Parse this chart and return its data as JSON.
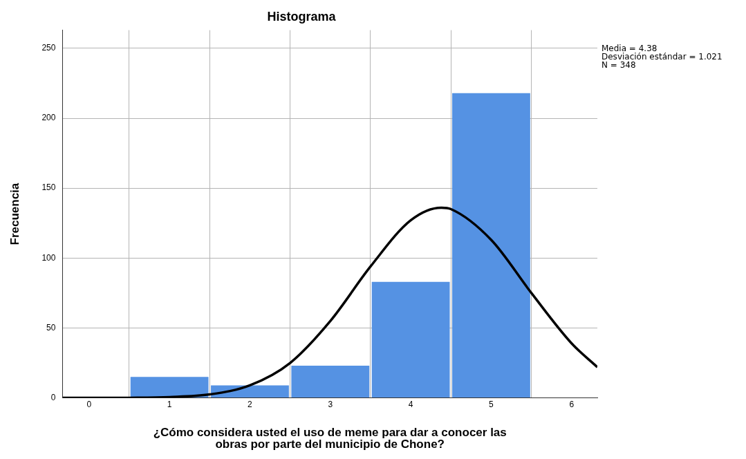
{
  "chart_data": {
    "type": "histogram",
    "title": "Histograma",
    "xlabel": "¿Cómo considera usted el uso de meme para dar a conocer las obras por parte del municipio de Chone?",
    "ylabel": "Frecuencia",
    "bins": [
      0.5,
      1.5,
      2.5,
      3.5,
      4.5,
      5.5
    ],
    "values": [
      15,
      9,
      23,
      83,
      218
    ],
    "color": "#5592e3",
    "series": [
      {
        "type": "line",
        "color": "#000000",
        "x": [
          -0.33,
          0,
          0.5,
          1,
          1.5,
          2,
          2.5,
          3,
          3.5,
          4,
          4.38,
          4.5,
          5,
          5.5,
          6,
          6.32
        ],
        "values": [
          0,
          0,
          0.1,
          0.6,
          2.5,
          9,
          25,
          55,
          94,
          127,
          136,
          135,
          113,
          75,
          39,
          22
        ]
      }
    ],
    "xlim": [
      -0.33,
      6.32
    ],
    "xticks": [
      0,
      1,
      2,
      3,
      4,
      5,
      6
    ],
    "ylim": [
      0,
      263
    ],
    "yticks": [
      0,
      50,
      100,
      150,
      200,
      250
    ],
    "grid": true,
    "legend": false,
    "marker": "none",
    "line_style": "solid",
    "annotations": [
      "Media = 4.38",
      "Desviación estándar = 1.021",
      "N = 348"
    ]
  }
}
